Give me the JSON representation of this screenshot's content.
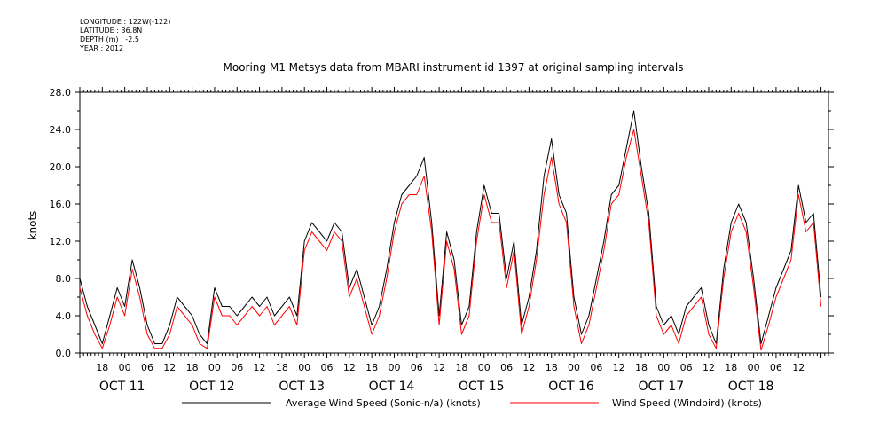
{
  "metadata": {
    "longitude": "LONGITUDE : 122W(-122)",
    "latitude": "LATITUDE : 36.8N",
    "depth": "DEPTH (m) : -2.5",
    "year": "YEAR : 2012"
  },
  "chart_data": {
    "type": "line",
    "title": "Mooring M1 Metsys data from MBARI instrument id 1397 at original sampling intervals",
    "ylabel": "knots",
    "ylim": [
      0,
      28
    ],
    "yticks": [
      "0.0",
      "4.0",
      "8.0",
      "12.0",
      "16.0",
      "20.0",
      "24.0",
      "28.0"
    ],
    "xlim_hours": [
      12,
      212
    ],
    "hour_tick_labels": [
      {
        "h": 18,
        "label": "18"
      },
      {
        "h": 24,
        "label": "00"
      },
      {
        "h": 30,
        "label": "06"
      },
      {
        "h": 36,
        "label": "12"
      },
      {
        "h": 42,
        "label": "18"
      },
      {
        "h": 48,
        "label": "00"
      },
      {
        "h": 54,
        "label": "06"
      },
      {
        "h": 60,
        "label": "12"
      },
      {
        "h": 66,
        "label": "18"
      },
      {
        "h": 72,
        "label": "00"
      },
      {
        "h": 78,
        "label": "06"
      },
      {
        "h": 84,
        "label": "12"
      },
      {
        "h": 90,
        "label": "18"
      },
      {
        "h": 96,
        "label": "00"
      },
      {
        "h": 102,
        "label": "06"
      },
      {
        "h": 108,
        "label": "12"
      },
      {
        "h": 114,
        "label": "18"
      },
      {
        "h": 120,
        "label": "00"
      },
      {
        "h": 126,
        "label": "06"
      },
      {
        "h": 132,
        "label": "12"
      },
      {
        "h": 138,
        "label": "18"
      },
      {
        "h": 144,
        "label": "00"
      },
      {
        "h": 150,
        "label": "06"
      },
      {
        "h": 156,
        "label": "12"
      },
      {
        "h": 162,
        "label": "18"
      },
      {
        "h": 168,
        "label": "00"
      },
      {
        "h": 174,
        "label": "06"
      },
      {
        "h": 180,
        "label": "12"
      },
      {
        "h": 186,
        "label": "18"
      },
      {
        "h": 192,
        "label": "00"
      },
      {
        "h": 198,
        "label": "06"
      },
      {
        "h": 204,
        "label": "12"
      }
    ],
    "day_labels": [
      {
        "h": 24,
        "label": "OCT 11"
      },
      {
        "h": 48,
        "label": "OCT 12"
      },
      {
        "h": 72,
        "label": "OCT 13"
      },
      {
        "h": 96,
        "label": "OCT 14"
      },
      {
        "h": 120,
        "label": "OCT 15"
      },
      {
        "h": 144,
        "label": "OCT 16"
      },
      {
        "h": 168,
        "label": "OCT 17"
      },
      {
        "h": 192,
        "label": "OCT 18"
      }
    ],
    "series": [
      {
        "name": "Average Wind Speed (Sonic-n/a) (knots)",
        "color": "#000000",
        "x_hours": [
          12,
          14,
          16,
          18,
          20,
          22,
          24,
          26,
          28,
          30,
          32,
          34,
          36,
          38,
          40,
          42,
          44,
          46,
          48,
          50,
          52,
          54,
          56,
          58,
          60,
          62,
          64,
          66,
          68,
          70,
          72,
          74,
          76,
          78,
          80,
          82,
          84,
          86,
          88,
          90,
          92,
          94,
          96,
          98,
          100,
          102,
          104,
          106,
          108,
          110,
          112,
          114,
          116,
          118,
          120,
          122,
          124,
          126,
          128,
          130,
          132,
          134,
          136,
          138,
          140,
          142,
          144,
          146,
          148,
          150,
          152,
          154,
          156,
          158,
          160,
          162,
          164,
          166,
          168,
          170,
          172,
          174,
          176,
          178,
          180,
          182,
          184,
          186,
          188,
          190,
          192,
          194,
          196,
          198,
          200,
          202,
          204,
          206,
          208,
          210
        ],
        "values": [
          8,
          5,
          3,
          1,
          4,
          7,
          5,
          10,
          7,
          3,
          1,
          1,
          3,
          6,
          5,
          4,
          2,
          1,
          7,
          5,
          5,
          4,
          5,
          6,
          5,
          6,
          4,
          5,
          6,
          4,
          12,
          14,
          13,
          12,
          14,
          13,
          7,
          9,
          6,
          3,
          5,
          9,
          14,
          17,
          18,
          19,
          21,
          14,
          4,
          13,
          10,
          3,
          5,
          13,
          18,
          15,
          15,
          8,
          12,
          3,
          6,
          11,
          19,
          23,
          17,
          15,
          6,
          2,
          4,
          8,
          12,
          17,
          18,
          22,
          26,
          20,
          15,
          5,
          3,
          4,
          2,
          5,
          6,
          7,
          3,
          1,
          9,
          14,
          16,
          14,
          8,
          1,
          4,
          7,
          9,
          11,
          18,
          14,
          15,
          6
        ]
      },
      {
        "name": "Wind Speed (Windbird) (knots)",
        "color": "#ff0000",
        "x_hours": [
          12,
          14,
          16,
          18,
          20,
          22,
          24,
          26,
          28,
          30,
          32,
          34,
          36,
          38,
          40,
          42,
          44,
          46,
          48,
          50,
          52,
          54,
          56,
          58,
          60,
          62,
          64,
          66,
          68,
          70,
          72,
          74,
          76,
          78,
          80,
          82,
          84,
          86,
          88,
          90,
          92,
          94,
          96,
          98,
          100,
          102,
          104,
          106,
          108,
          110,
          112,
          114,
          116,
          118,
          120,
          122,
          124,
          126,
          128,
          130,
          132,
          134,
          136,
          138,
          140,
          142,
          144,
          146,
          148,
          150,
          152,
          154,
          156,
          158,
          160,
          162,
          164,
          166,
          168,
          170,
          172,
          174,
          176,
          178,
          180,
          182,
          184,
          186,
          188,
          190,
          192,
          194,
          196,
          198,
          200,
          202,
          204,
          206,
          208,
          210
        ],
        "values": [
          7,
          4,
          2,
          0.5,
          3,
          6,
          4,
          9,
          6,
          2,
          0.5,
          0.5,
          2,
          5,
          4,
          3,
          1,
          0.5,
          6,
          4,
          4,
          3,
          4,
          5,
          4,
          5,
          3,
          4,
          5,
          3,
          11,
          13,
          12,
          11,
          13,
          12,
          6,
          8,
          5,
          2,
          4,
          8,
          13,
          16,
          17,
          17,
          19,
          13,
          3,
          12,
          9,
          2,
          4,
          12,
          17,
          14,
          14,
          7,
          11,
          2,
          5,
          10,
          17,
          21,
          16,
          14,
          5,
          1,
          3,
          7,
          11,
          16,
          17,
          21,
          24,
          19,
          14,
          4,
          2,
          3,
          1,
          4,
          5,
          6,
          2,
          0.5,
          8,
          13,
          15,
          13,
          7,
          0.3,
          3,
          6,
          8,
          10,
          17,
          13,
          14,
          5
        ]
      }
    ]
  }
}
